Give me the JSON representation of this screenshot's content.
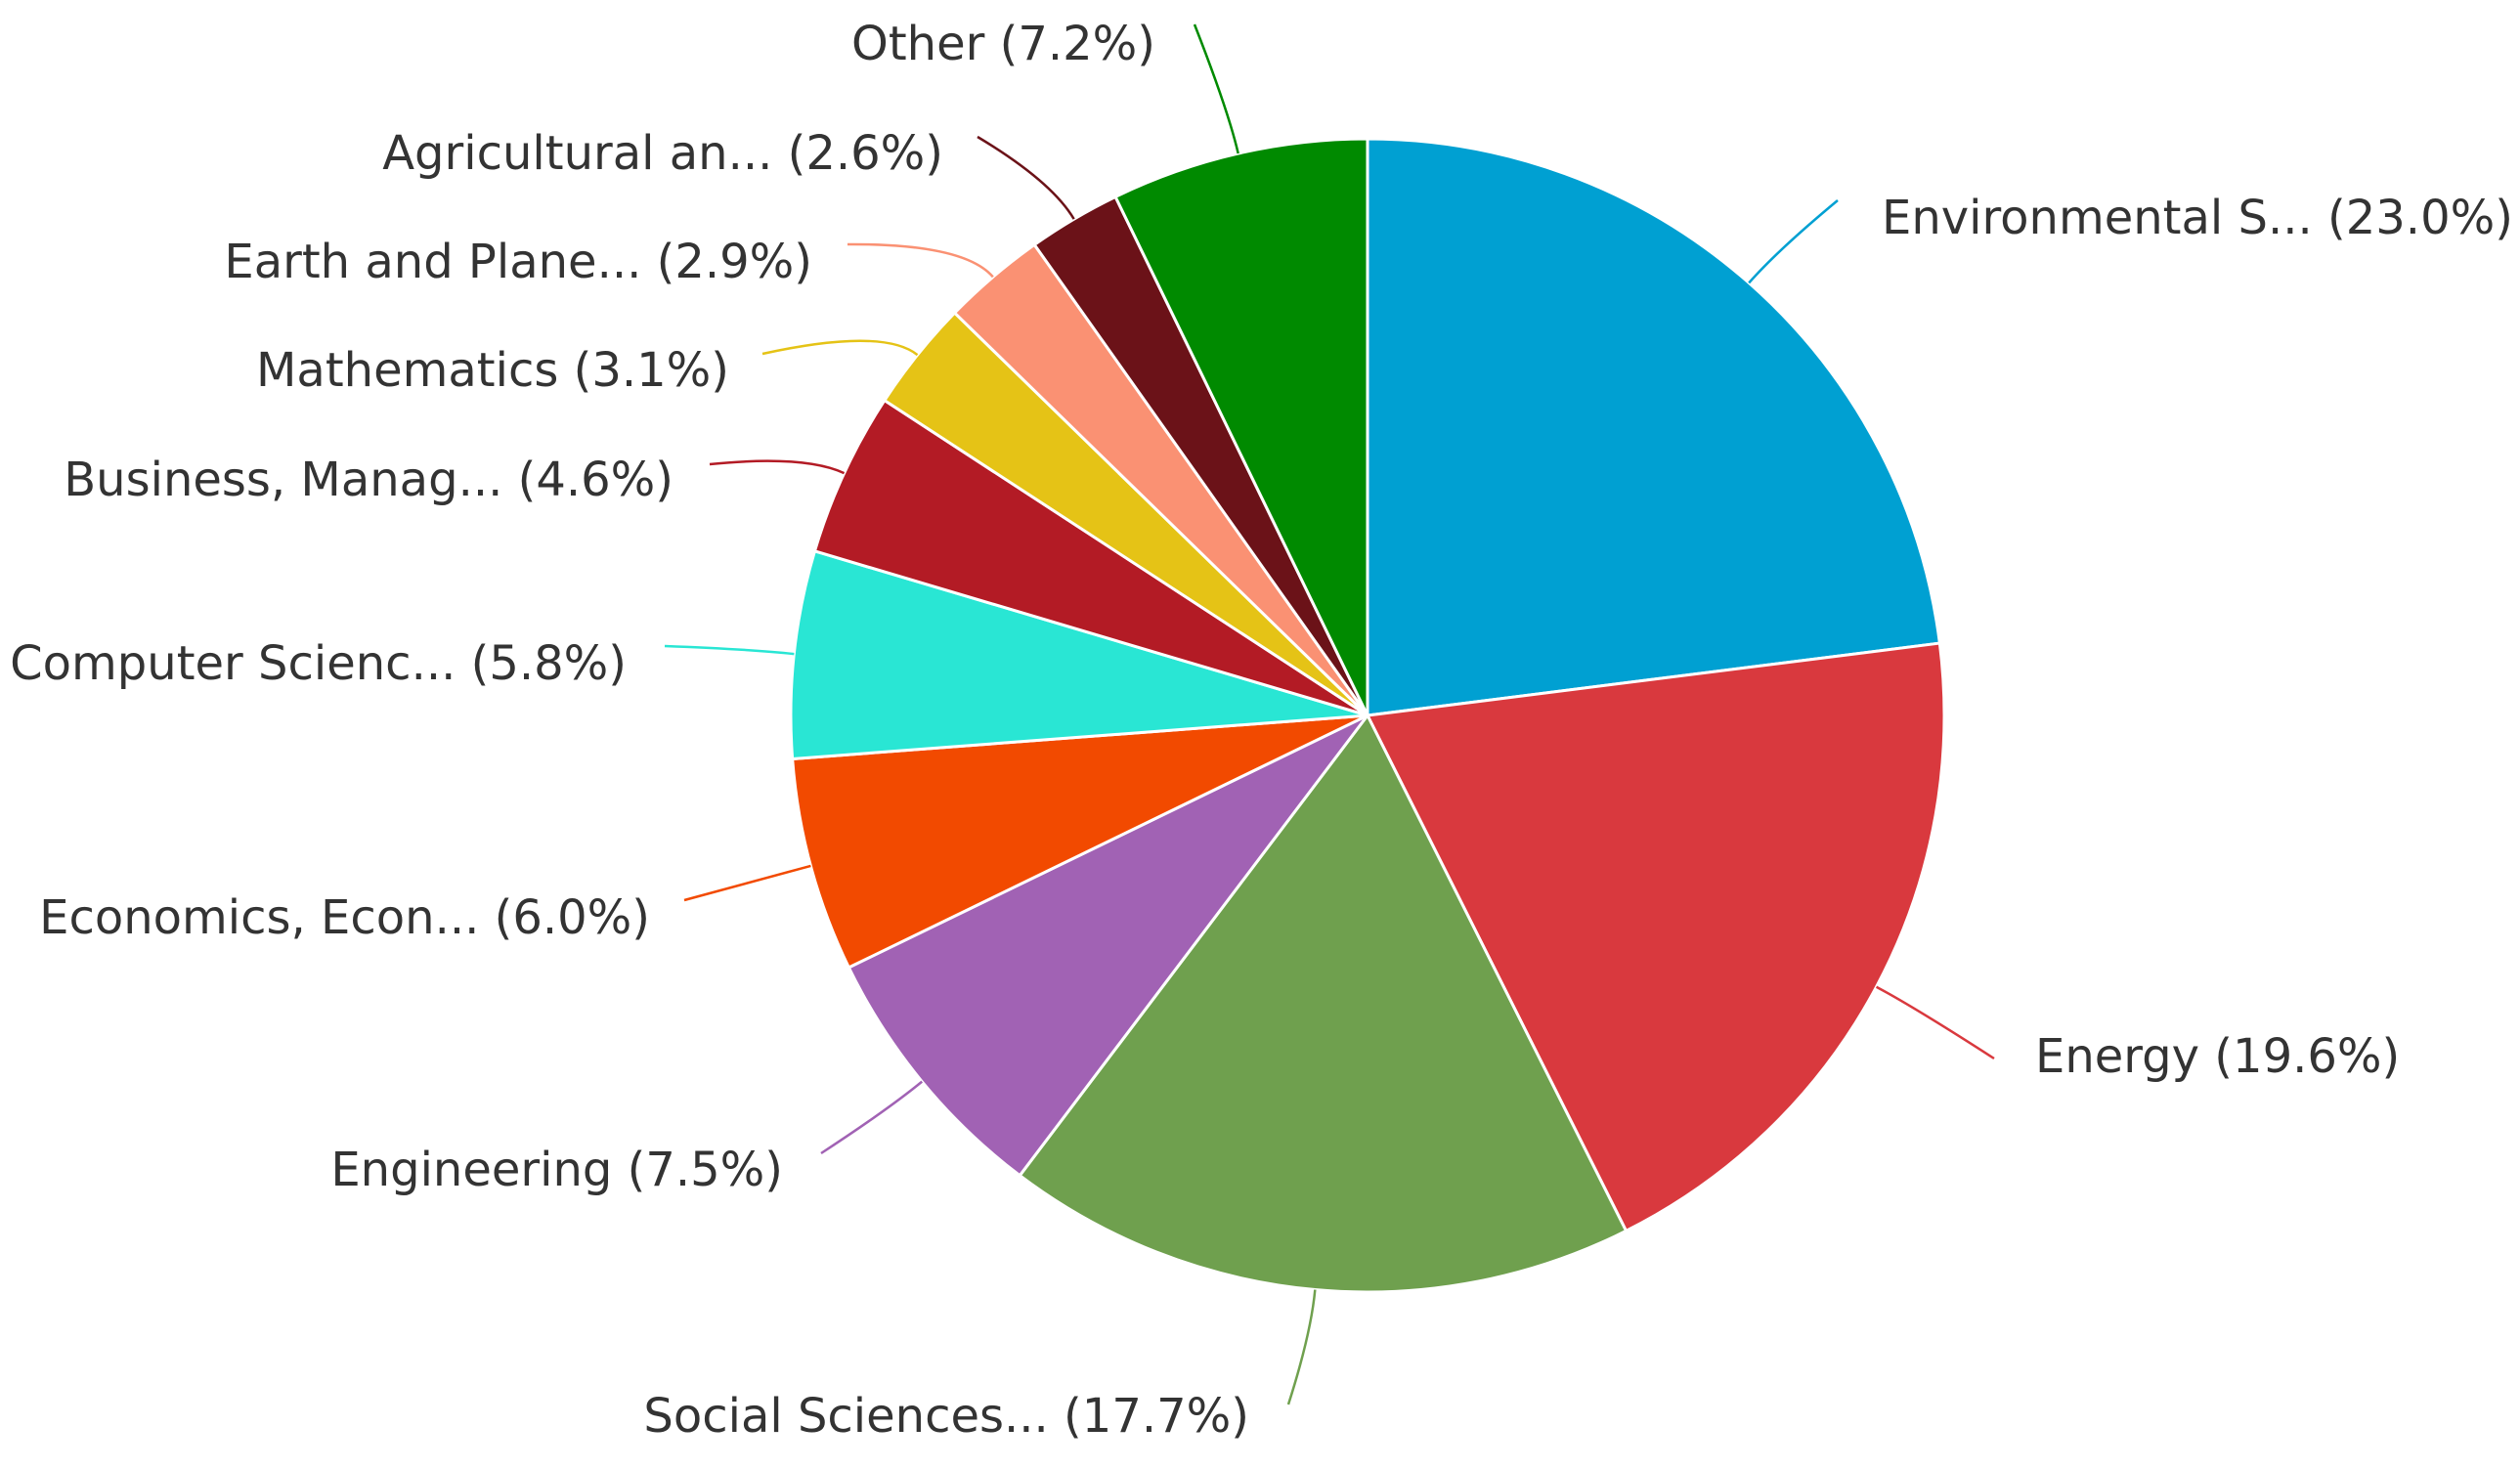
{
  "chart_data": {
    "type": "pie",
    "start_angle_deg": 0,
    "direction": "clockwise",
    "slices": [
      {
        "label": "Environmental S... (23.0%)",
        "category": "Environmental S...",
        "value": 23.0,
        "color": "#00A0D2"
      },
      {
        "label": "Energy (19.6%)",
        "category": "Energy",
        "value": 19.6,
        "color": "#D9393E"
      },
      {
        "label": "Social Sciences... (17.7%)",
        "category": "Social Sciences...",
        "value": 17.7,
        "color": "#6FA04E"
      },
      {
        "label": "Engineering (7.5%)",
        "category": "Engineering",
        "value": 7.5,
        "color": "#A162B4"
      },
      {
        "label": "Economics, Econ... (6.0%)",
        "category": "Economics, Econ...",
        "value": 6.0,
        "color": "#F24A00"
      },
      {
        "label": "Computer Scienc... (5.8%)",
        "category": "Computer Scienc...",
        "value": 5.8,
        "color": "#29E6D4"
      },
      {
        "label": "Business, Manag... (4.6%)",
        "category": "Business, Manag...",
        "value": 4.6,
        "color": "#B31B25"
      },
      {
        "label": "Mathematics (3.1%)",
        "category": "Mathematics",
        "value": 3.1,
        "color": "#E5C316"
      },
      {
        "label": "Earth and Plane... (2.9%)",
        "category": "Earth and Plane...",
        "value": 2.9,
        "color": "#FA9173"
      },
      {
        "label": "Agricultural an... (2.6%)",
        "category": "Agricultural an...",
        "value": 2.6,
        "color": "#6B1218"
      },
      {
        "label": "Other (7.2%)",
        "category": "Other",
        "value": 7.2,
        "color": "#008A00"
      }
    ]
  }
}
